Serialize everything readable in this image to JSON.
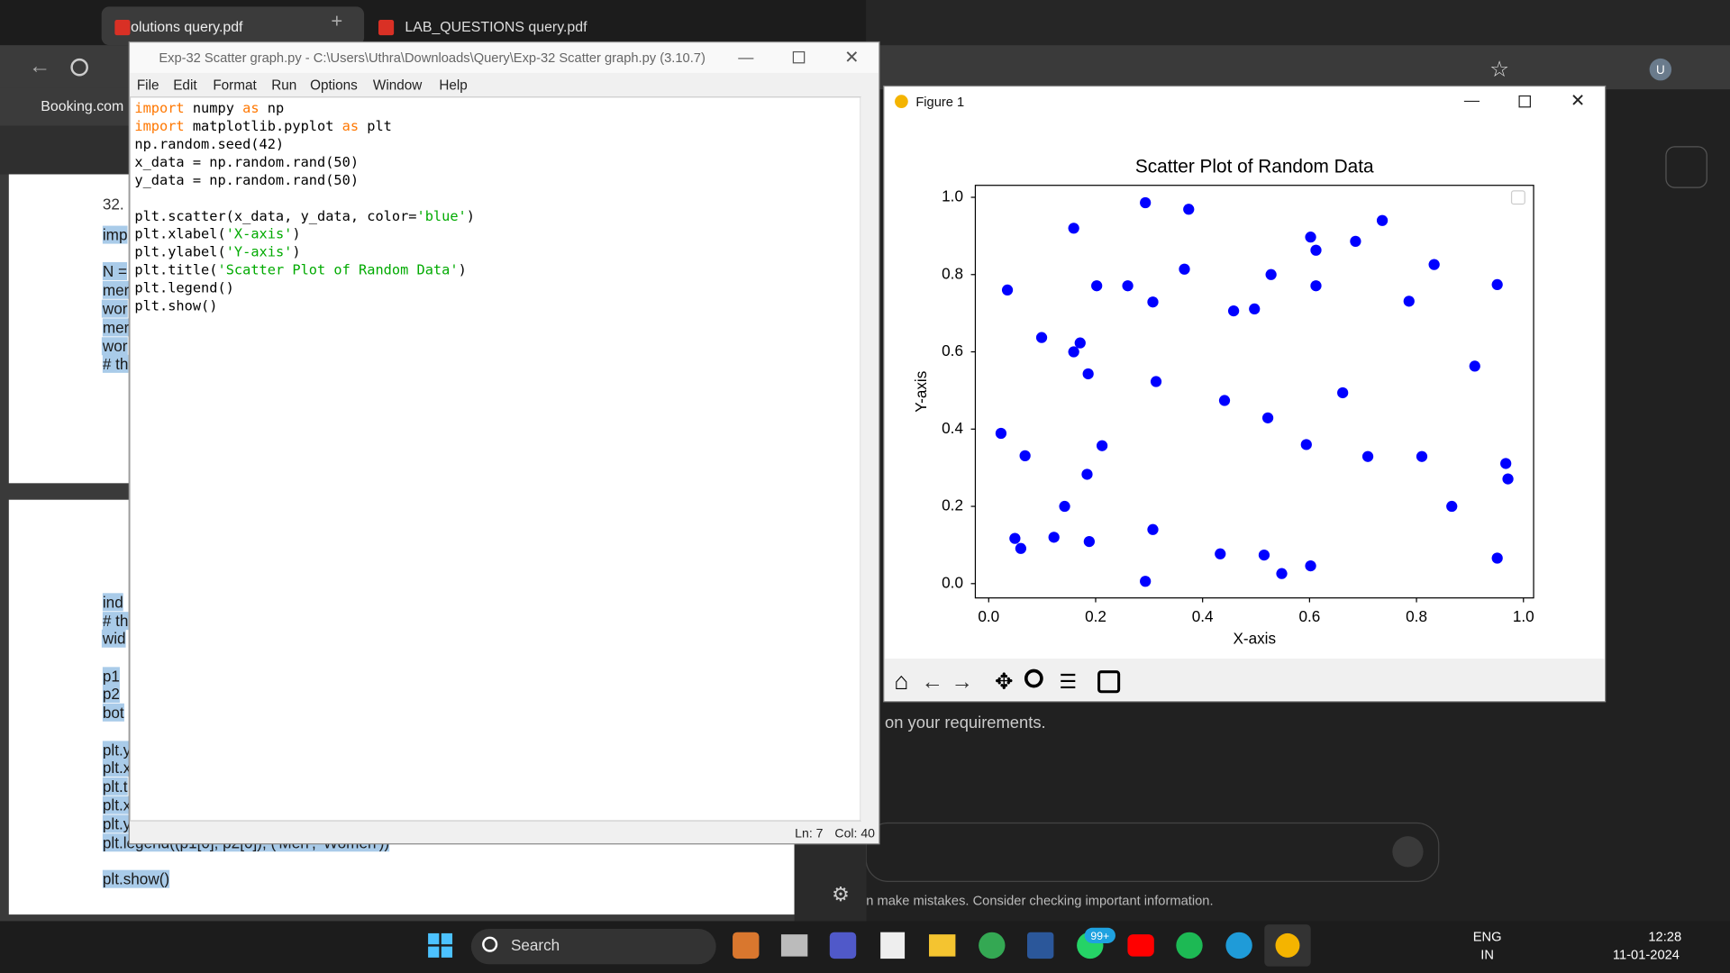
{
  "browser": {
    "tabs": [
      "solutions query.pdf",
      "LAB_QUESTIONS query.pdf"
    ],
    "bookmark": "Booking.com",
    "profile": "U"
  },
  "pdf": {
    "question": "32.",
    "fragments": [
      "imp",
      "N =",
      "mer",
      "wor",
      "mer",
      "wor",
      "# th",
      "ind",
      "# th",
      "wid",
      "p1",
      "p2",
      "bot",
      "plt.y",
      "plt.x",
      "plt.t",
      "plt.x",
      "plt.y",
      "plt.legend((p1[0], p2[0]), ('Men', 'Women'))",
      "plt.show()"
    ]
  },
  "chat": {
    "text": "on your requirements.",
    "disclaimer": "n make mistakes. Consider checking important information."
  },
  "idle": {
    "title": "Exp-32 Scatter graph.py - C:\\Users\\Uthra\\Downloads\\Query\\Exp-32 Scatter graph.py (3.10.7)",
    "menu": [
      "File",
      "Edit",
      "Format",
      "Run",
      "Options",
      "Window",
      "Help"
    ],
    "code": [
      [
        {
          "text": "import",
          "color": "#ff7700"
        },
        {
          "text": " numpy ",
          "color": "#000000"
        },
        {
          "text": "as",
          "color": "#ff7700"
        },
        {
          "text": " np",
          "color": "#000000"
        }
      ],
      [
        {
          "text": "import",
          "color": "#ff7700"
        },
        {
          "text": " matplotlib.pyplot ",
          "color": "#000000"
        },
        {
          "text": "as",
          "color": "#ff7700"
        },
        {
          "text": " plt",
          "color": "#000000"
        }
      ],
      [
        {
          "text": "np.random.seed(42)",
          "color": "#000000"
        }
      ],
      [
        {
          "text": "x_data = np.random.rand(50)",
          "color": "#000000"
        }
      ],
      [
        {
          "text": "y_data = np.random.rand(50)",
          "color": "#000000"
        }
      ],
      [],
      [
        {
          "text": "plt.scatter(x_data, y_data, color=",
          "color": "#000000"
        },
        {
          "text": "'blue'",
          "color": "#00aa00"
        },
        {
          "text": ")",
          "color": "#000000"
        }
      ],
      [
        {
          "text": "plt.xlabel(",
          "color": "#000000"
        },
        {
          "text": "'X-axis'",
          "color": "#00aa00"
        },
        {
          "text": ")",
          "color": "#000000"
        }
      ],
      [
        {
          "text": "plt.ylabel(",
          "color": "#000000"
        },
        {
          "text": "'Y-axis'",
          "color": "#00aa00"
        },
        {
          "text": ")",
          "color": "#000000"
        }
      ],
      [
        {
          "text": "plt.title(",
          "color": "#000000"
        },
        {
          "text": "'Scatter Plot of Random Data'",
          "color": "#00aa00"
        },
        {
          "text": ")",
          "color": "#000000"
        }
      ],
      [
        {
          "text": "plt.legend()",
          "color": "#000000"
        }
      ],
      [
        {
          "text": "plt.show()",
          "color": "#000000"
        }
      ]
    ],
    "status": [
      "Ln: 7",
      "Col: 40"
    ]
  },
  "figure": {
    "window_title": "Figure 1",
    "chart_data": {
      "type": "scatter",
      "title": "Scatter Plot of Random Data",
      "x_label": "X-axis",
      "y_label": "Y-axis",
      "color": "#0000ff",
      "x": [
        0.293,
        0.374,
        0.159,
        0.736,
        0.602,
        0.686,
        0.612,
        0.833,
        0.366,
        0.528,
        0.035,
        0.202,
        0.26,
        0.612,
        0.951,
        0.307,
        0.786,
        0.458,
        0.497,
        0.099,
        0.171,
        0.159,
        0.909,
        0.186,
        0.313,
        0.662,
        0.441,
        0.522,
        0.023,
        0.212,
        0.594,
        0.068,
        0.709,
        0.81,
        0.967,
        0.971,
        0.184,
        0.142,
        0.866,
        0.307,
        0.049,
        0.122,
        0.188,
        0.06,
        0.433,
        0.515,
        0.951,
        0.602,
        0.548,
        0.293
      ],
      "y": [
        0.986,
        0.969,
        0.92,
        0.94,
        0.897,
        0.886,
        0.863,
        0.826,
        0.814,
        0.8,
        0.76,
        0.771,
        0.771,
        0.771,
        0.774,
        0.729,
        0.731,
        0.706,
        0.711,
        0.637,
        0.623,
        0.6,
        0.563,
        0.543,
        0.523,
        0.494,
        0.474,
        0.429,
        0.389,
        0.357,
        0.36,
        0.331,
        0.329,
        0.329,
        0.311,
        0.271,
        0.283,
        0.2,
        0.2,
        0.14,
        0.117,
        0.12,
        0.109,
        0.091,
        0.077,
        0.074,
        0.066,
        0.046,
        0.026,
        0.006
      ],
      "xlim": [
        -0.025,
        1.019
      ],
      "ylim": [
        -0.037,
        1.031
      ],
      "xticks": [
        {
          "value": 0,
          "label": "0.0"
        },
        0.2,
        0.4,
        0.6,
        0.8,
        {
          "value": 1,
          "label": "1.0"
        }
      ],
      "yticks": [
        {
          "value": 0,
          "label": "0.0"
        },
        0.2,
        0.4,
        0.6,
        0.8,
        {
          "value": 1,
          "label": "1.0"
        }
      ],
      "grid": false
    }
  },
  "taskbar": {
    "search": "Search",
    "badge": "99+",
    "language": [
      "ENG",
      "IN"
    ],
    "time": "12:28",
    "date": "11-01-2024"
  }
}
